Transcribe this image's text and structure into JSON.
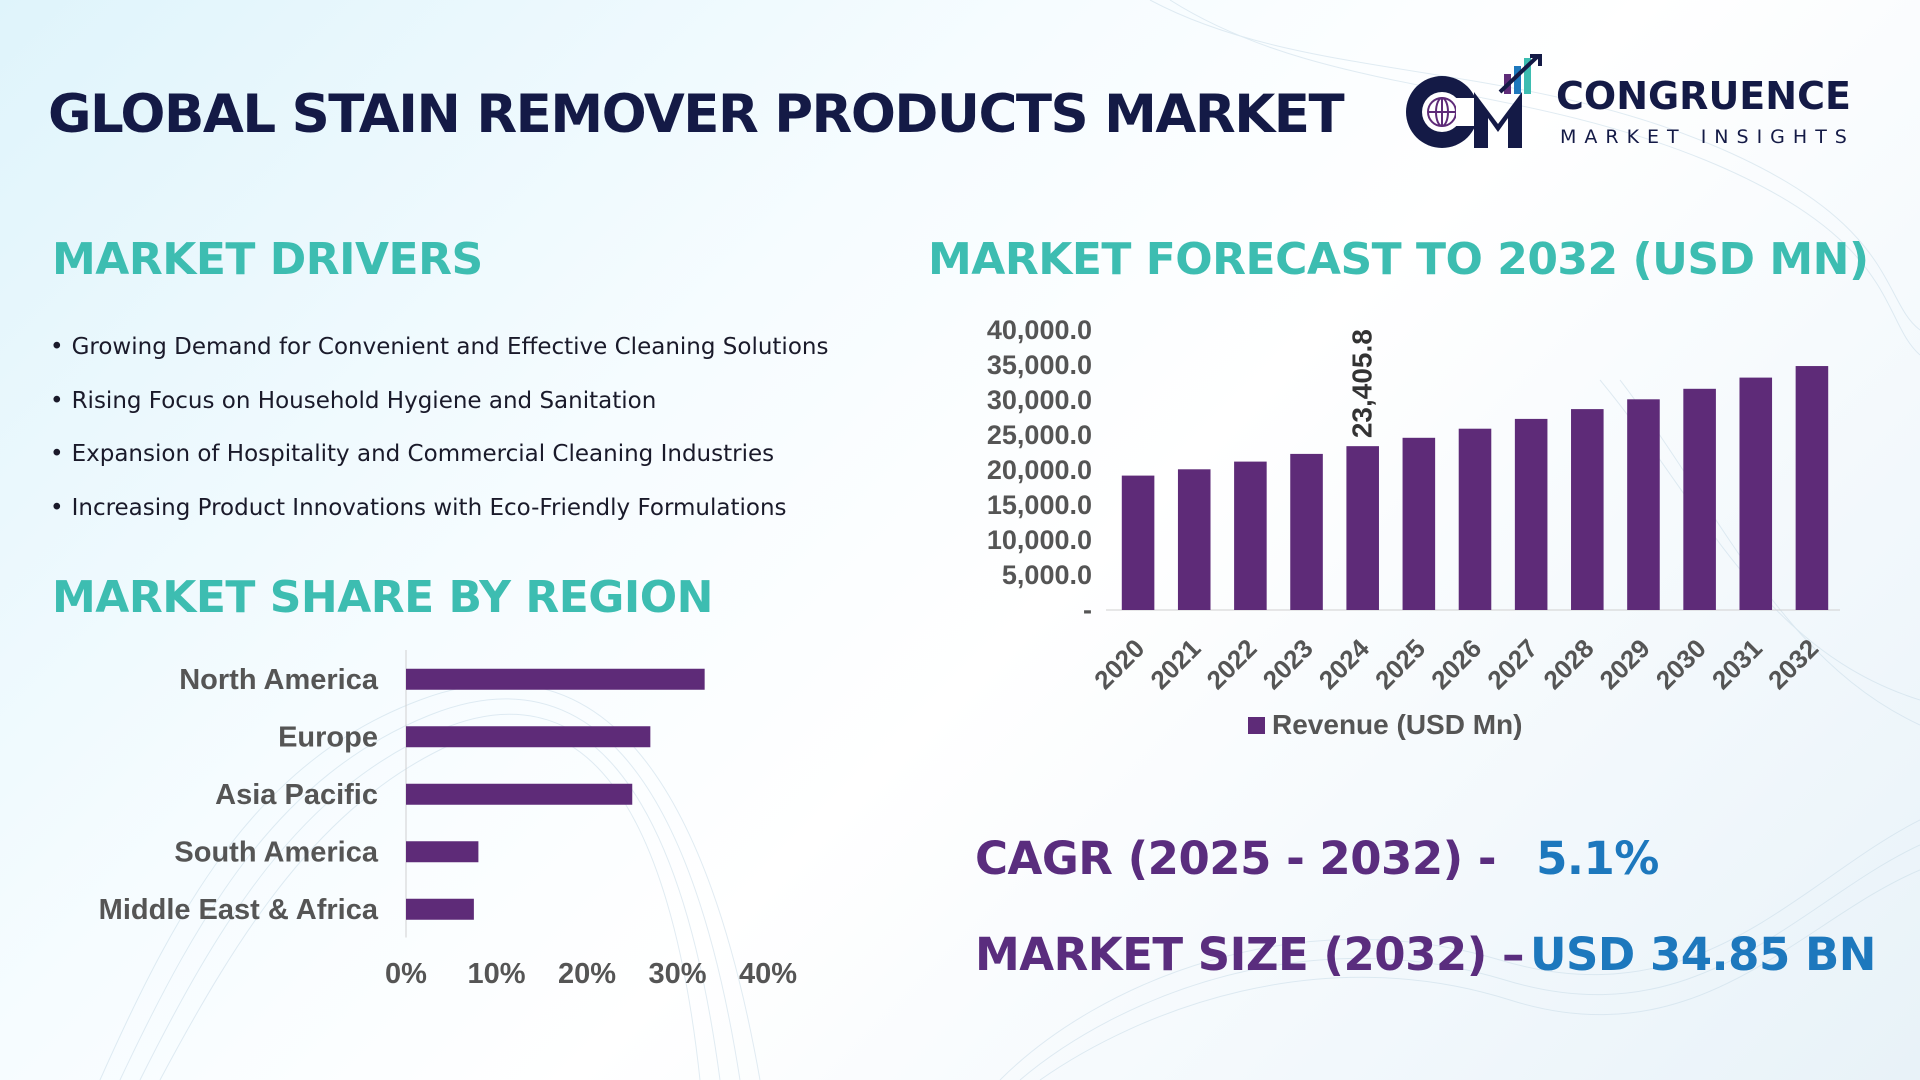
{
  "header": {
    "title": "GLOBAL STAIN REMOVER PRODUCTS MARKET",
    "logo": {
      "name": "CONGRUENCE",
      "tagline": "MARKET INSIGHTS",
      "mark_letters": "CM"
    }
  },
  "drivers": {
    "heading": "MARKET DRIVERS",
    "items": [
      "Growing Demand for Convenient and Effective Cleaning Solutions",
      "Rising Focus on Household Hygiene and Sanitation",
      "Expansion of Hospitality and Commercial Cleaning Industries",
      "Increasing Product Innovations with Eco-Friendly Formulations"
    ]
  },
  "forecast": {
    "heading": "MARKET FORECAST TO 2032 (USD MN)"
  },
  "region": {
    "heading": "MARKET SHARE BY REGION"
  },
  "stats": {
    "cagr_label": "CAGR (2025 - 2032) -",
    "cagr_value": "5.1%",
    "size_label": "MARKET SIZE (2032) –",
    "size_value": "USD 34.85 BN"
  },
  "colors": {
    "title": "#141a46",
    "heading": "#3dbdb1",
    "bar": "#5e2b78",
    "stat_label": "#5a2d7e",
    "stat_value": "#1d78bd",
    "axis_text": "#555555"
  },
  "chart_data": [
    {
      "type": "bar",
      "orientation": "vertical",
      "categories": [
        "2020",
        "2021",
        "2022",
        "2023",
        "2024",
        "2025",
        "2026",
        "2027",
        "2028",
        "2029",
        "2030",
        "2031",
        "2032"
      ],
      "series": [
        {
          "name": "Revenue (USD Mn)",
          "values": [
            19200,
            20100,
            21200,
            22300,
            23405.8,
            24600,
            25900,
            27300,
            28700,
            30100,
            31600,
            33200,
            34850
          ]
        }
      ],
      "ylim": [
        0,
        40000
      ],
      "yticks": [
        "-",
        "5,000.0",
        "10,000.0",
        "15,000.0",
        "20,000.0",
        "25,000.0",
        "30,000.0",
        "35,000.0",
        "40,000.0"
      ],
      "data_labels": [
        {
          "category": "2024",
          "text": "23,405.8"
        }
      ],
      "legend": "bottom",
      "grid": false
    },
    {
      "type": "bar",
      "orientation": "horizontal",
      "categories": [
        "North America",
        "Europe",
        "Asia Pacific",
        "South America",
        "Middle East & Africa"
      ],
      "values": [
        33,
        27,
        25,
        8,
        7.5
      ],
      "xlim": [
        0,
        40
      ],
      "xticks": [
        "0%",
        "10%",
        "20%",
        "30%",
        "40%"
      ],
      "grid": false
    }
  ]
}
